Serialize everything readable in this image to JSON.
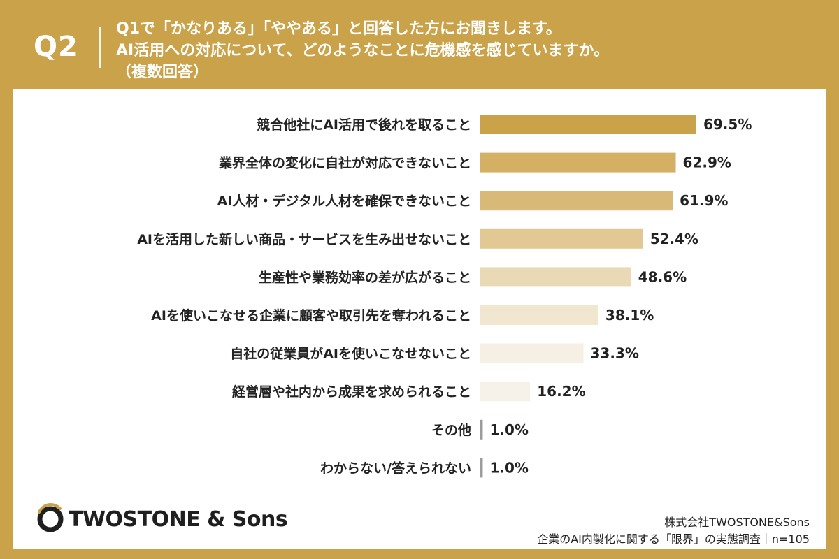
{
  "question": {
    "number": "Q2",
    "line1": "Q1で「かなりある」「ややある」と回答した方にお聞きします。",
    "line2": "AI活用への対応について、どのようなことに危機感を感じていますか。",
    "line3": "（複数回答）"
  },
  "chart_data": {
    "type": "bar",
    "orientation": "horizontal",
    "categories": [
      "競合他社にAI活用で後れを取ること",
      "業界全体の変化に自社が対応できないこと",
      "AI人材・デジタル人材を確保できないこと",
      "AIを活用した新しい商品・サービスを生み出せないこと",
      "生産性や業務効率の差が広がること",
      "AIを使いこなせる企業に顧客や取引先を奪われること",
      "自社の従業員がAIを使いこなせないこと",
      "経営層や社内から成果を求められること",
      "その他",
      "わからない/答えられない"
    ],
    "values": [
      69.5,
      62.9,
      61.9,
      52.4,
      48.6,
      38.1,
      33.3,
      16.2,
      1.0,
      1.0
    ],
    "value_labels": [
      "69.5%",
      "62.9%",
      "61.9%",
      "52.4%",
      "48.6%",
      "38.1%",
      "33.3%",
      "16.2%",
      "1.0%",
      "1.0%"
    ],
    "bar_colors": [
      "#c9a24a",
      "#d4b065",
      "#d9b978",
      "#e2c994",
      "#ead9b5",
      "#f1e6cf",
      "#f5efe4",
      "#f6f1e9",
      "#9c9c9c",
      "#9c9c9c"
    ],
    "unit": "%",
    "xlim": [
      0,
      100
    ],
    "title": "",
    "xlabel": "",
    "ylabel": ""
  },
  "footer": {
    "brand": "TWOSTONE & Sons",
    "company": "株式会社TWOSTONE&Sons",
    "survey": "企業のAI内製化に関する「限界」の実態調査｜n=105"
  },
  "colors": {
    "frame": "#c9a24a",
    "text": "#222222"
  }
}
